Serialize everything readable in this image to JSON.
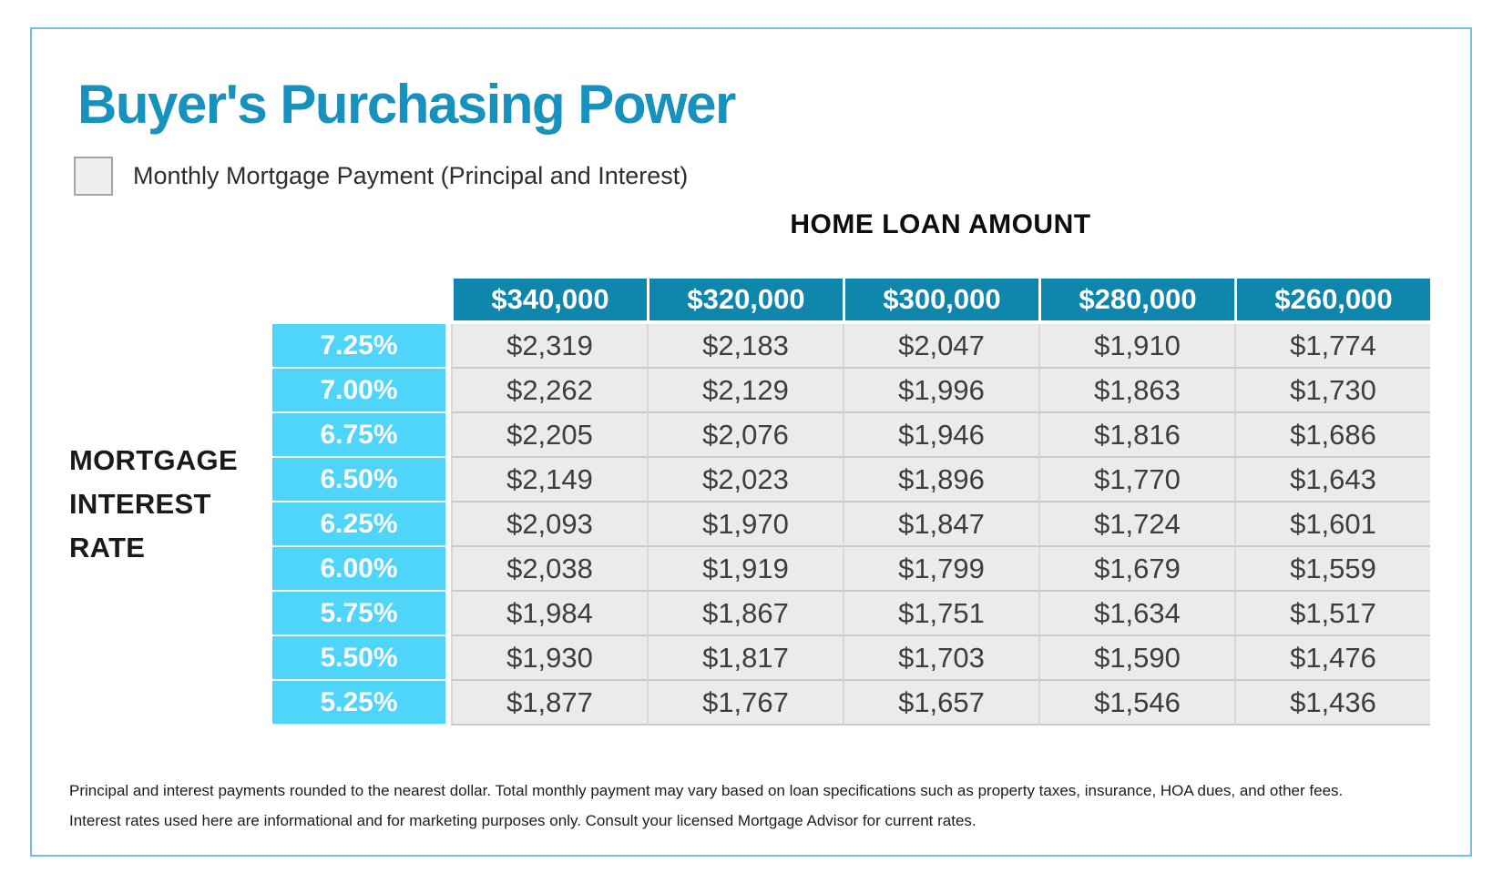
{
  "header": {
    "title": "Buyer's Purchasing Power",
    "legend_label": "Monthly Mortgage Payment (Principal and Interest)"
  },
  "table": {
    "group_header": "HOME LOAN AMOUNT",
    "row_group_label_lines": [
      "MORTGAGE",
      "INTEREST",
      "RATE"
    ],
    "columns": [
      "$340,000",
      "$320,000",
      "$300,000",
      "$280,000",
      "$260,000"
    ],
    "rows": [
      {
        "rate": "7.25%",
        "payments": [
          "$2,319",
          "$2,183",
          "$2,047",
          "$1,910",
          "$1,774"
        ]
      },
      {
        "rate": "7.00%",
        "payments": [
          "$2,262",
          "$2,129",
          "$1,996",
          "$1,863",
          "$1,730"
        ]
      },
      {
        "rate": "6.75%",
        "payments": [
          "$2,205",
          "$2,076",
          "$1,946",
          "$1,816",
          "$1,686"
        ]
      },
      {
        "rate": "6.50%",
        "payments": [
          "$2,149",
          "$2,023",
          "$1,896",
          "$1,770",
          "$1,643"
        ]
      },
      {
        "rate": "6.25%",
        "payments": [
          "$2,093",
          "$1,970",
          "$1,847",
          "$1,724",
          "$1,601"
        ]
      },
      {
        "rate": "6.00%",
        "payments": [
          "$2,038",
          "$1,919",
          "$1,799",
          "$1,679",
          "$1,559"
        ]
      },
      {
        "rate": "5.75%",
        "payments": [
          "$1,984",
          "$1,867",
          "$1,751",
          "$1,634",
          "$1,517"
        ]
      },
      {
        "rate": "5.50%",
        "payments": [
          "$1,930",
          "$1,817",
          "$1,703",
          "$1,590",
          "$1,476"
        ]
      },
      {
        "rate": "5.25%",
        "payments": [
          "$1,877",
          "$1,767",
          "$1,657",
          "$1,546",
          "$1,436"
        ]
      }
    ]
  },
  "footnotes": [
    "Principal and interest payments rounded to the nearest dollar. Total monthly payment may vary based on loan specifications such as property taxes, insurance, HOA dues, and other fees.",
    "Interest rates used here are informational and for marketing purposes only. Consult your licensed Mortgage Advisor for current rates."
  ],
  "colors": {
    "title_teal": "#1791bd",
    "header_cell_teal": "#0f86ab",
    "rate_cell_cyan": "#4fd5f9",
    "data_cell_gray": "#ebebeb",
    "frame_border_blue": "#6fc2dc"
  },
  "chart_data": {
    "type": "table",
    "title": "Buyer's Purchasing Power",
    "subtitle": "Monthly Mortgage Payment (Principal and Interest)",
    "columns_label": "HOME LOAN AMOUNT",
    "rows_label": "MORTGAGE INTEREST RATE",
    "categories": [
      340000,
      320000,
      300000,
      280000,
      260000
    ],
    "series": [
      {
        "name": "7.25%",
        "values": [
          2319,
          2183,
          2047,
          1910,
          1774
        ]
      },
      {
        "name": "7.00%",
        "values": [
          2262,
          2129,
          1996,
          1863,
          1730
        ]
      },
      {
        "name": "6.75%",
        "values": [
          2205,
          2076,
          1946,
          1816,
          1686
        ]
      },
      {
        "name": "6.50%",
        "values": [
          2149,
          2023,
          1896,
          1770,
          1643
        ]
      },
      {
        "name": "6.25%",
        "values": [
          2093,
          1970,
          1847,
          1724,
          1601
        ]
      },
      {
        "name": "6.00%",
        "values": [
          2038,
          1919,
          1799,
          1679,
          1559
        ]
      },
      {
        "name": "5.75%",
        "values": [
          1984,
          1867,
          1751,
          1634,
          1517
        ]
      },
      {
        "name": "5.50%",
        "values": [
          1930,
          1817,
          1703,
          1590,
          1476
        ]
      },
      {
        "name": "5.25%",
        "values": [
          1877,
          1767,
          1657,
          1546,
          1436
        ]
      }
    ]
  }
}
